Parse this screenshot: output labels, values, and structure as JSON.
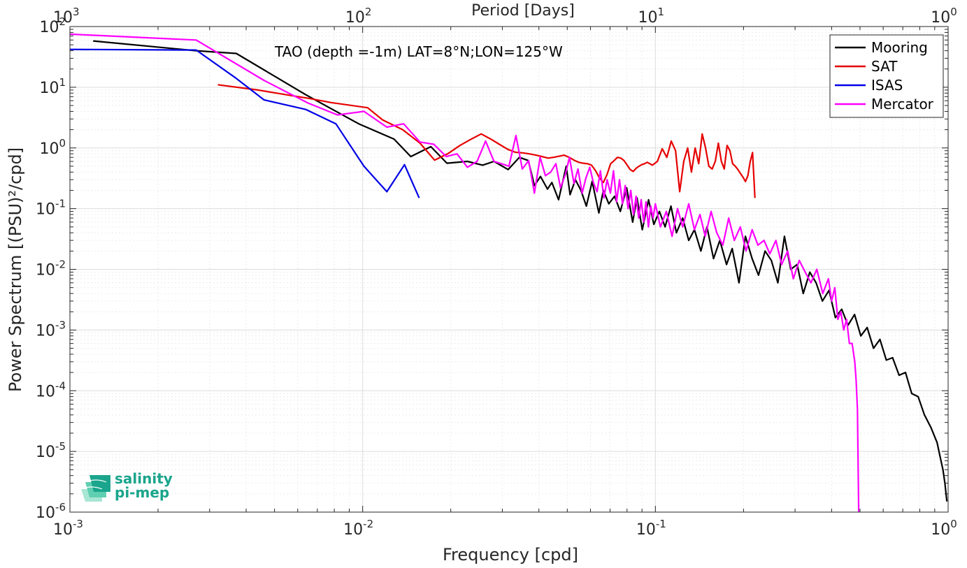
{
  "chart_data": {
    "type": "line",
    "title": "TAO (depth =-1m) LAT=8°N;LON=125°W",
    "xlabel": "Frequency [cpd]",
    "x2label": "Period [Days]",
    "ylabel": "Power Spectrum [(PSU)²/cpd]",
    "xscale": "log",
    "yscale": "log",
    "xlim": [
      0.001,
      1
    ],
    "ylim": [
      1e-06,
      100
    ],
    "grid": "on (major and minor)",
    "legend_position": "top-right",
    "x_ticks": [
      {
        "value": 0.001,
        "base": "10",
        "exp": "-3"
      },
      {
        "value": 0.01,
        "base": "10",
        "exp": "-2"
      },
      {
        "value": 0.1,
        "base": "10",
        "exp": "-1"
      },
      {
        "value": 1,
        "base": "10",
        "exp": "0"
      }
    ],
    "x2_ticks": [
      {
        "freq": 0.001,
        "base": "10",
        "exp": "3"
      },
      {
        "freq": 0.01,
        "base": "10",
        "exp": "2"
      },
      {
        "freq": 0.1,
        "base": "10",
        "exp": "1"
      },
      {
        "freq": 1,
        "base": "10",
        "exp": "0"
      }
    ],
    "y_ticks": [
      {
        "value": 100,
        "base": "10",
        "exp": "2"
      },
      {
        "value": 10,
        "base": "10",
        "exp": "1"
      },
      {
        "value": 1,
        "base": "10",
        "exp": "0"
      },
      {
        "value": 0.1,
        "base": "10",
        "exp": "-1"
      },
      {
        "value": 0.01,
        "base": "10",
        "exp": "-2"
      },
      {
        "value": 0.001,
        "base": "10",
        "exp": "-3"
      },
      {
        "value": 0.0001,
        "base": "10",
        "exp": "-4"
      },
      {
        "value": 1e-05,
        "base": "10",
        "exp": "-5"
      },
      {
        "value": 1e-06,
        "base": "10",
        "exp": "-6"
      }
    ],
    "series": [
      {
        "name": "Mooring",
        "color": "#000000",
        "x": [
          0.0012,
          0.0027,
          0.0037,
          0.0064,
          0.0097,
          0.0128,
          0.0146,
          0.0171,
          0.0194,
          0.0228,
          0.0257,
          0.0281,
          0.0314,
          0.0343,
          0.0368,
          0.0386,
          0.0405,
          0.0428,
          0.0443,
          0.0467,
          0.0496,
          0.0511,
          0.0533,
          0.0557,
          0.0581,
          0.0608,
          0.0641,
          0.0664,
          0.0693,
          0.0725,
          0.0759,
          0.0798,
          0.0836,
          0.0865,
          0.0902,
          0.0948,
          0.0988,
          0.1032,
          0.1079,
          0.113,
          0.118,
          0.124,
          0.13,
          0.136,
          0.143,
          0.15,
          0.158,
          0.166,
          0.175,
          0.183,
          0.193,
          0.203,
          0.214,
          0.225,
          0.237,
          0.249,
          0.262,
          0.276,
          0.29,
          0.305,
          0.32,
          0.337,
          0.354,
          0.372,
          0.392,
          0.412,
          0.433,
          0.455,
          0.479,
          0.503,
          0.529,
          0.556,
          0.585,
          0.615,
          0.646,
          0.68,
          0.715,
          0.751,
          0.79,
          0.83,
          0.873,
          0.917,
          0.94,
          0.96,
          0.975,
          0.99
        ],
        "y": [
          58,
          40,
          36,
          7.5,
          2.5,
          1.4,
          0.72,
          1.05,
          0.56,
          0.6,
          0.52,
          0.6,
          0.44,
          0.7,
          0.62,
          0.24,
          0.34,
          0.21,
          0.27,
          0.14,
          0.5,
          0.17,
          0.3,
          0.2,
          0.11,
          0.28,
          0.085,
          0.2,
          0.12,
          0.16,
          0.09,
          0.22,
          0.06,
          0.15,
          0.045,
          0.14,
          0.055,
          0.09,
          0.05,
          0.11,
          0.04,
          0.07,
          0.03,
          0.045,
          0.02,
          0.05,
          0.015,
          0.03,
          0.012,
          0.022,
          0.006,
          0.035,
          0.015,
          0.008,
          0.02,
          0.014,
          0.006,
          0.035,
          0.01,
          0.012,
          0.004,
          0.009,
          0.006,
          0.003,
          0.0045,
          0.0016,
          0.0022,
          0.0012,
          0.0018,
          0.0008,
          0.0011,
          0.0005,
          0.0007,
          0.00032,
          0.00035,
          0.00018,
          0.0002,
          9e-05,
          8e-05,
          4e-05,
          2.5e-05,
          1.4e-05,
          8e-06,
          5e-06,
          3e-06,
          1.5e-06
        ]
      },
      {
        "name": "SAT",
        "color": "#e60000",
        "x": [
          0.0032,
          0.0044,
          0.0055,
          0.0066,
          0.0078,
          0.0104,
          0.0117,
          0.0137,
          0.0157,
          0.0176,
          0.0196,
          0.0215,
          0.0235,
          0.0254,
          0.0274,
          0.0293,
          0.0313,
          0.0332,
          0.0352,
          0.0371,
          0.0391,
          0.041,
          0.043,
          0.0449,
          0.0469,
          0.0488,
          0.0508,
          0.0527,
          0.0547,
          0.0566,
          0.0586,
          0.0605,
          0.0625,
          0.0644,
          0.0664,
          0.0683,
          0.0703,
          0.0723,
          0.0742,
          0.0762,
          0.0781,
          0.0801,
          0.082,
          0.084,
          0.0859,
          0.0879,
          0.0898,
          0.0918,
          0.0938,
          0.0957,
          0.0977,
          0.1016,
          0.1055,
          0.1094,
          0.1133,
          0.1172,
          0.1211,
          0.125,
          0.1289,
          0.1328,
          0.1367,
          0.1406,
          0.1445,
          0.1484,
          0.1523,
          0.1563,
          0.1602,
          0.1641,
          0.168,
          0.1719,
          0.1758,
          0.1797,
          0.1836,
          0.1875,
          0.1914,
          0.1953,
          0.1992,
          0.2031,
          0.207,
          0.2109,
          0.2148,
          0.2188
        ],
        "y": [
          11,
          9,
          7.5,
          6.5,
          5.6,
          4.6,
          2.9,
          2.0,
          1.2,
          0.63,
          0.81,
          1.1,
          1.4,
          1.7,
          1.4,
          1.15,
          0.95,
          0.85,
          0.83,
          0.8,
          0.76,
          0.72,
          0.68,
          0.7,
          0.73,
          0.76,
          0.7,
          0.63,
          0.58,
          0.56,
          0.55,
          0.52,
          0.42,
          0.32,
          0.27,
          0.36,
          0.55,
          0.62,
          0.7,
          0.68,
          0.62,
          0.52,
          0.44,
          0.41,
          0.46,
          0.5,
          0.53,
          0.55,
          0.58,
          0.55,
          0.52,
          0.6,
          0.97,
          0.7,
          1.3,
          0.9,
          0.19,
          0.6,
          1.0,
          0.4,
          1.0,
          0.55,
          1.7,
          1.0,
          0.5,
          0.45,
          0.6,
          1.2,
          0.6,
          0.45,
          1.1,
          0.9,
          0.55,
          0.5,
          0.44,
          0.38,
          0.33,
          0.28,
          0.35,
          0.6,
          0.84,
          0.15
        ]
      },
      {
        "name": "ISAS",
        "color": "#0000e6",
        "x": [
          0.001,
          0.0027,
          0.0037,
          0.0046,
          0.0064,
          0.0081,
          0.0101,
          0.0121,
          0.0139,
          0.0156
        ],
        "y": [
          42,
          41,
          14,
          6.2,
          4.3,
          2.5,
          0.5,
          0.19,
          0.53,
          0.15
        ]
      },
      {
        "name": "Mercator",
        "color": "#ff00ff",
        "x": [
          0.001,
          0.0027,
          0.0046,
          0.0065,
          0.0082,
          0.0101,
          0.0121,
          0.0138,
          0.0157,
          0.0175,
          0.0193,
          0.021,
          0.0228,
          0.0246,
          0.0263,
          0.0281,
          0.0298,
          0.0316,
          0.0334,
          0.0351,
          0.0369,
          0.0386,
          0.0404,
          0.0421,
          0.0439,
          0.0457,
          0.0474,
          0.0492,
          0.0509,
          0.0527,
          0.0544,
          0.0562,
          0.0579,
          0.0597,
          0.0614,
          0.0632,
          0.0649,
          0.0667,
          0.0684,
          0.0702,
          0.0719,
          0.0737,
          0.0754,
          0.0772,
          0.0789,
          0.0807,
          0.0824,
          0.0842,
          0.0859,
          0.0877,
          0.0894,
          0.0912,
          0.0929,
          0.0947,
          0.0964,
          0.0982,
          0.1,
          0.104,
          0.109,
          0.114,
          0.119,
          0.124,
          0.13,
          0.136,
          0.142,
          0.148,
          0.155,
          0.162,
          0.17,
          0.178,
          0.186,
          0.195,
          0.204,
          0.214,
          0.224,
          0.235,
          0.246,
          0.258,
          0.27,
          0.283,
          0.296,
          0.31,
          0.325,
          0.34,
          0.356,
          0.373,
          0.39,
          0.4,
          0.41,
          0.42,
          0.43,
          0.44,
          0.45,
          0.46,
          0.47,
          0.48,
          0.485,
          0.49,
          0.495
        ],
        "y": [
          75,
          60,
          13,
          5.5,
          3.5,
          4.0,
          2.2,
          2.5,
          1.25,
          1.15,
          0.72,
          0.8,
          0.48,
          0.6,
          1.3,
          0.6,
          0.55,
          0.5,
          1.6,
          0.45,
          0.62,
          0.18,
          0.7,
          0.35,
          0.4,
          0.55,
          0.22,
          0.36,
          0.7,
          0.26,
          0.45,
          0.18,
          0.32,
          0.48,
          0.27,
          0.19,
          0.42,
          0.15,
          0.3,
          0.18,
          0.42,
          0.13,
          0.3,
          0.12,
          0.24,
          0.1,
          0.2,
          0.08,
          0.16,
          0.07,
          0.14,
          0.06,
          0.13,
          0.05,
          0.11,
          0.07,
          0.12,
          0.05,
          0.09,
          0.035,
          0.1,
          0.05,
          0.12,
          0.045,
          0.08,
          0.035,
          0.09,
          0.04,
          0.025,
          0.07,
          0.03,
          0.05,
          0.02,
          0.045,
          0.025,
          0.03,
          0.018,
          0.03,
          0.012,
          0.02,
          0.007,
          0.014,
          0.009,
          0.006,
          0.01,
          0.004,
          0.007,
          0.003,
          0.005,
          0.0015,
          0.002,
          0.001,
          0.0015,
          0.0006,
          0.0006,
          0.0003,
          0.00015,
          5e-05,
          1e-06
        ]
      }
    ]
  },
  "logo": {
    "line1": "salinity",
    "line2": "pi-mep",
    "icon": "wave-stack-icon",
    "color": "#1aa58c"
  }
}
